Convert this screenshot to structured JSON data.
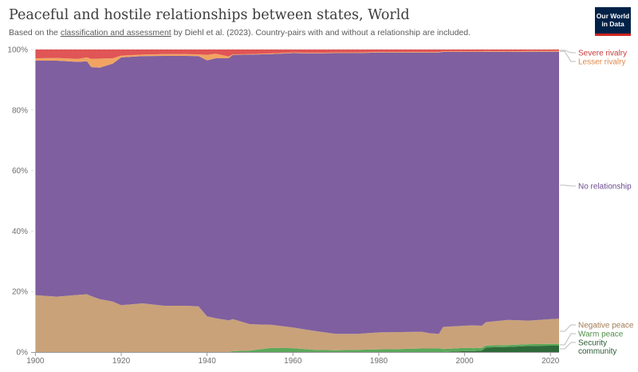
{
  "header": {
    "title": "Peaceful and hostile relationships between states, World",
    "subtitle_prefix": "Based on the ",
    "subtitle_link": "classification and assessment",
    "subtitle_suffix": " by Diehl et al. (2023). Country-pairs with and without a relationship are included."
  },
  "logo": {
    "line1": "Our World",
    "line2": "in Data"
  },
  "colors": {
    "security_community": "#2f6b3a",
    "warm_peace": "#5ba85a",
    "negative_peace": "#c9a27a",
    "no_relationship": "#7f5f9f",
    "lesser_rivalry": "#f1a462",
    "severe_rivalry": "#e05555",
    "gridline": "#dddddd"
  },
  "chart_data": {
    "type": "area",
    "stacked": true,
    "x": [
      1900,
      1905,
      1910,
      1912,
      1913,
      1915,
      1918,
      1920,
      1925,
      1930,
      1935,
      1938,
      1940,
      1942,
      1945,
      1946,
      1950,
      1955,
      1960,
      1965,
      1970,
      1975,
      1980,
      1985,
      1990,
      1992,
      1994,
      1995,
      2000,
      2002,
      2004,
      2005,
      2010,
      2015,
      2020,
      2022
    ],
    "series": [
      {
        "name": "Security community",
        "values": [
          0,
          0,
          0,
          0,
          0,
          0,
          0,
          0,
          0,
          0,
          0,
          0,
          0,
          0,
          0,
          0,
          0,
          0,
          0,
          0,
          0,
          0,
          0,
          0,
          0,
          0,
          0,
          0,
          0.3,
          0.3,
          0.5,
          1.5,
          1.7,
          2.0,
          2.1,
          2.1
        ]
      },
      {
        "name": "Warm peace",
        "values": [
          0,
          0,
          0,
          0,
          0,
          0,
          0,
          0,
          0,
          0,
          0,
          0,
          0,
          0,
          0,
          0.3,
          0.5,
          1.4,
          1.3,
          0.7,
          0.6,
          0.7,
          0.9,
          1.0,
          1.2,
          1.2,
          1.3,
          1.0,
          1.1,
          1.0,
          0.9,
          0.7,
          0.6,
          0.6,
          0.6,
          0.6
        ]
      },
      {
        "name": "Negative peace",
        "values": [
          18.8,
          18.3,
          18.9,
          19.1,
          18.5,
          17.5,
          16.7,
          15.5,
          16.1,
          15.3,
          15.3,
          15.1,
          11.8,
          11.2,
          10.5,
          10.6,
          8.7,
          7.6,
          6.8,
          6.3,
          5.4,
          5.3,
          5.6,
          5.6,
          5.5,
          5.0,
          4.7,
          7.3,
          7.3,
          7.5,
          7.3,
          7.7,
          8.3,
          7.8,
          8.2,
          8.3
        ]
      },
      {
        "name": "No relationship",
        "values": [
          77.5,
          78.0,
          77.0,
          77.0,
          75.7,
          76.5,
          78.6,
          81.9,
          81.7,
          82.6,
          82.6,
          82.7,
          84.6,
          85.9,
          86.6,
          87.3,
          89.1,
          89.5,
          90.7,
          91.7,
          92.8,
          92.8,
          92.5,
          92.4,
          92.3,
          92.8,
          93.0,
          90.9,
          90.5,
          90.4,
          90.5,
          89.4,
          88.6,
          88.9,
          88.4,
          88.3
        ]
      },
      {
        "name": "Lesser rivalry",
        "values": [
          0.8,
          0.9,
          1.0,
          1.3,
          2.7,
          3.0,
          1.8,
          0.6,
          0.5,
          0.6,
          0.6,
          0.6,
          1.8,
          1.5,
          0.6,
          0.2,
          0.2,
          0.2,
          0.2,
          0.2,
          0.2,
          0.2,
          0.2,
          0.2,
          0.2,
          0.2,
          0.2,
          0.2,
          0.2,
          0.2,
          0.2,
          0.2,
          0.2,
          0.2,
          0.2,
          0.2
        ]
      },
      {
        "name": "Severe rivalry",
        "values": [
          2.9,
          2.8,
          3.1,
          2.6,
          3.1,
          3.0,
          2.9,
          2.0,
          1.7,
          1.5,
          1.5,
          1.6,
          1.8,
          1.4,
          2.3,
          1.6,
          1.5,
          1.3,
          1.0,
          1.1,
          1.0,
          1.0,
          0.8,
          0.8,
          0.8,
          0.8,
          0.8,
          0.6,
          0.6,
          0.6,
          0.6,
          0.5,
          0.6,
          0.5,
          0.5,
          0.5
        ]
      }
    ],
    "legend": [
      {
        "lines": [
          "Severe rivalry"
        ],
        "series": "Severe rivalry",
        "text_color": "#c93b3b"
      },
      {
        "lines": [
          "Lesser rivalry"
        ],
        "series": "Lesser rivalry",
        "text_color": "#e0894a"
      },
      {
        "lines": [
          "No relationship"
        ],
        "series": "No relationship",
        "text_color": "#6b4c8f"
      },
      {
        "lines": [
          "Negative peace"
        ],
        "series": "Negative peace",
        "text_color": "#a07c55"
      },
      {
        "lines": [
          "Warm peace"
        ],
        "series": "Warm peace",
        "text_color": "#4f8f4a"
      },
      {
        "lines": [
          "Security",
          "community"
        ],
        "series": "Security community",
        "text_color": "#2b5a34"
      }
    ],
    "x_ticks": [
      "1900",
      "1920",
      "1940",
      "1960",
      "1980",
      "2000",
      "2020"
    ],
    "y_ticks": [
      "0%",
      "20%",
      "40%",
      "60%",
      "80%",
      "100%"
    ],
    "xlim": [
      1899,
      2022
    ],
    "ylim": [
      0,
      100
    ],
    "grid": true,
    "legend_placement": "right, aligned to series"
  }
}
